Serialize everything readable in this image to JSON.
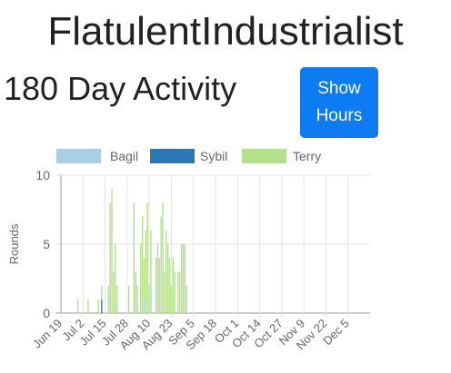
{
  "header": {
    "title": "FlatulentIndustrialist",
    "subtitle": "180 Day Activity",
    "toggle_button": {
      "line1": "Show",
      "line2": "Hours"
    }
  },
  "colors": {
    "button": "#0d7bf2",
    "grid": "#e4e4e4",
    "axis": "#999999"
  },
  "chart_data": {
    "type": "bar",
    "stacked": true,
    "ylabel": "Rounds",
    "ylim": [
      0,
      10
    ],
    "yticks": [
      0,
      5,
      10
    ],
    "x_start": "Jun 19",
    "xtick_labels": [
      "Jun 19",
      "Jul 2",
      "Jul 15",
      "Jul 28",
      "Aug 10",
      "Aug 23",
      "Sep 5",
      "Sep 18",
      "Oct 1",
      "Oct 14",
      "Oct 27",
      "Nov 9",
      "Nov 22",
      "Dec 5"
    ],
    "legend": {
      "position": "top"
    },
    "grid": true,
    "series": [
      {
        "name": "Bagil",
        "color": "#a8cfe2",
        "points": [
          [
            "Aug 7",
            1
          ],
          [
            "Aug 11",
            2
          ]
        ]
      },
      {
        "name": "Sybil",
        "color": "#2b78b5",
        "points": [
          [
            "Jul 13",
            1
          ]
        ]
      },
      {
        "name": "Terry",
        "color": "#b6df8c",
        "points": [
          [
            "Jun 29",
            1
          ],
          [
            "Jul 5",
            1
          ],
          [
            "Jul 11",
            1
          ],
          [
            "Jul 13",
            1
          ],
          [
            "Jul 17",
            2
          ],
          [
            "Jul 18",
            8
          ],
          [
            "Jul 19",
            9
          ],
          [
            "Jul 20",
            3
          ],
          [
            "Jul 21",
            5
          ],
          [
            "Jul 22",
            2
          ],
          [
            "Jul 29",
            2
          ],
          [
            "Aug 1",
            8
          ],
          [
            "Aug 2",
            3
          ],
          [
            "Aug 3",
            2
          ],
          [
            "Aug 5",
            5
          ],
          [
            "Aug 6",
            7
          ],
          [
            "Aug 7",
            3
          ],
          [
            "Aug 8",
            6
          ],
          [
            "Aug 9",
            8
          ],
          [
            "Aug 10",
            2
          ],
          [
            "Aug 11",
            4
          ],
          [
            "Aug 14",
            4
          ],
          [
            "Aug 15",
            5
          ],
          [
            "Aug 16",
            4
          ],
          [
            "Aug 17",
            7
          ],
          [
            "Aug 18",
            8
          ],
          [
            "Aug 19",
            3
          ],
          [
            "Aug 20",
            6
          ],
          [
            "Aug 21",
            5
          ],
          [
            "Aug 22",
            4
          ],
          [
            "Aug 23",
            2
          ],
          [
            "Aug 24",
            4
          ],
          [
            "Aug 25",
            3
          ],
          [
            "Aug 27",
            3
          ],
          [
            "Aug 28",
            3
          ],
          [
            "Aug 29",
            5
          ],
          [
            "Aug 30",
            5
          ],
          [
            "Aug 31",
            5
          ],
          [
            "Sep 1",
            2
          ]
        ]
      }
    ]
  }
}
